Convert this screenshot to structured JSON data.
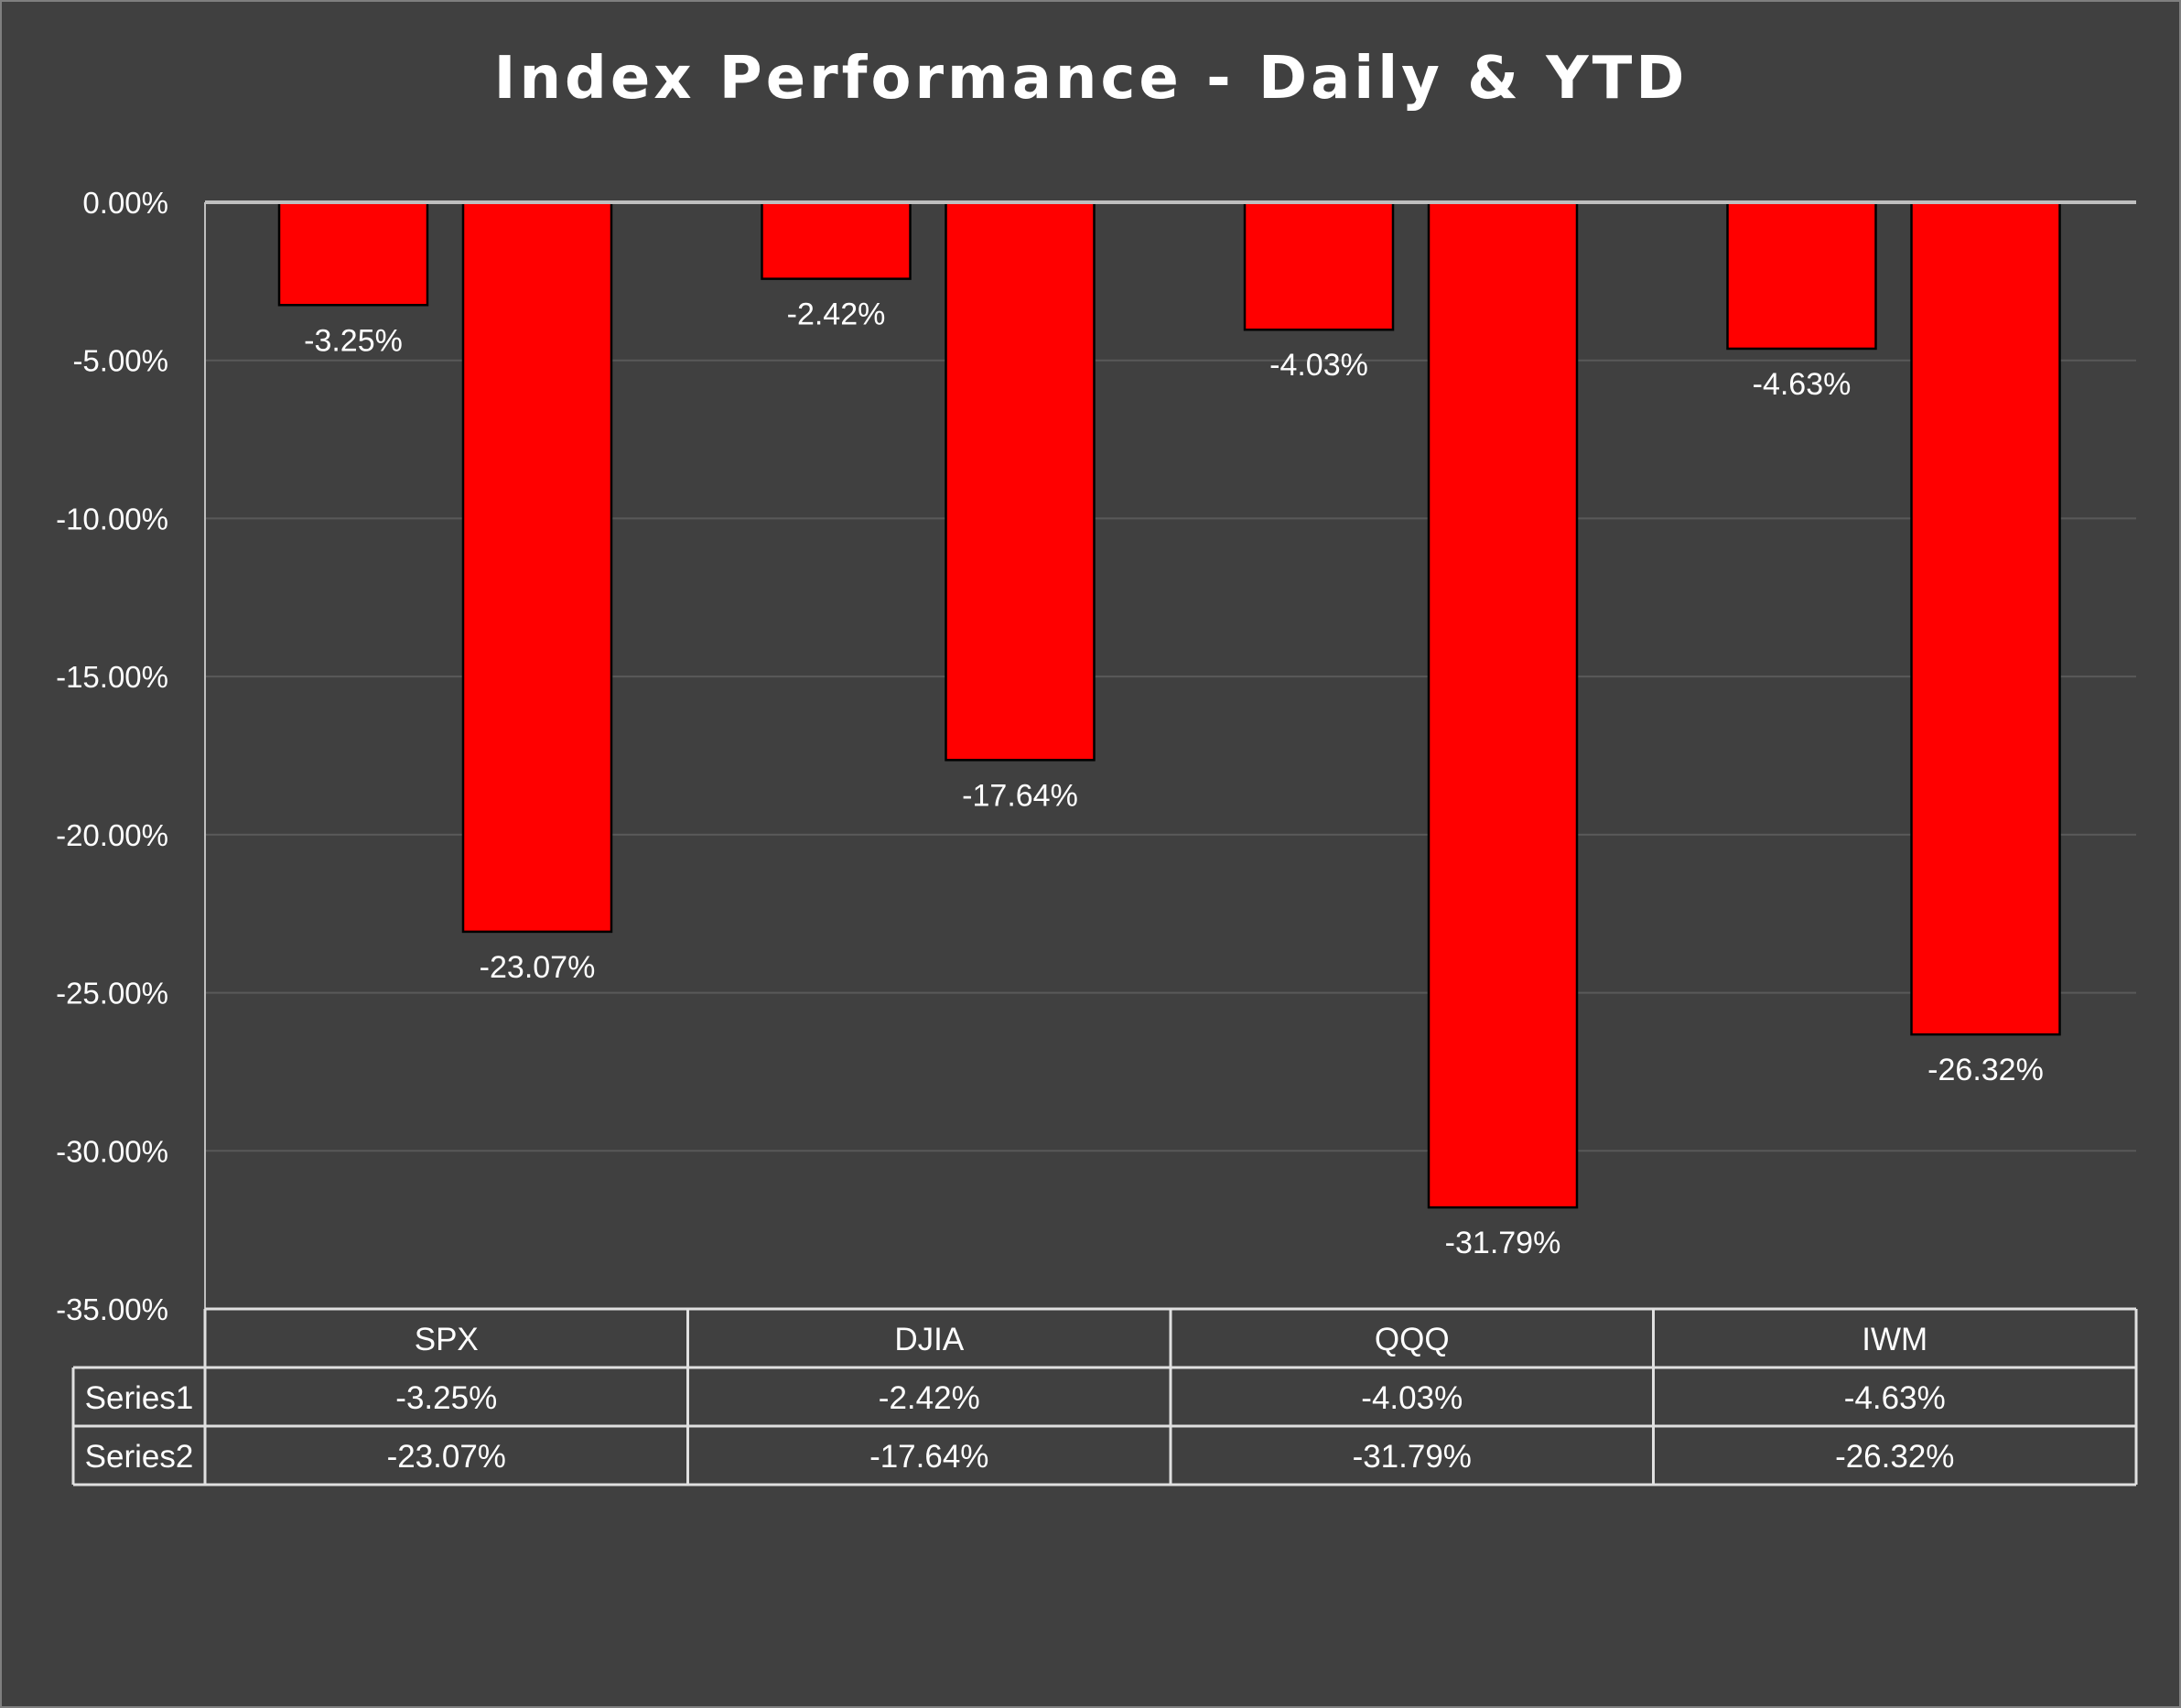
{
  "chart_data": {
    "type": "bar",
    "title": "Index Performance - Daily & YTD",
    "categories": [
      "SPX",
      "DJIA",
      "QQQ",
      "IWM"
    ],
    "series": [
      {
        "name": "Series1",
        "values": [
          -3.25,
          -2.42,
          -4.03,
          -4.63
        ],
        "labels": [
          "-3.25%",
          "-2.42%",
          "-4.03%",
          "-4.63%"
        ]
      },
      {
        "name": "Series2",
        "values": [
          -23.07,
          -17.64,
          -31.79,
          -26.32
        ],
        "labels": [
          "-23.07%",
          "-17.64%",
          "-31.79%",
          "-26.32%"
        ]
      }
    ],
    "ylim": [
      -35,
      0
    ],
    "yticks": [
      0,
      -5,
      -10,
      -15,
      -20,
      -25,
      -30,
      -35
    ],
    "ytick_labels": [
      "0.00%",
      "-5.00%",
      "-10.00%",
      "-15.00%",
      "-20.00%",
      "-25.00%",
      "-30.00%",
      "-35.00%"
    ],
    "grid": true,
    "legend": "data-table",
    "colors": {
      "background": "#404040",
      "bar_fill": "#ff0000",
      "bar_stroke": "#000000",
      "gridline": "#595959",
      "axis_line": "#bfbfbf",
      "text": "#ffffff"
    }
  }
}
